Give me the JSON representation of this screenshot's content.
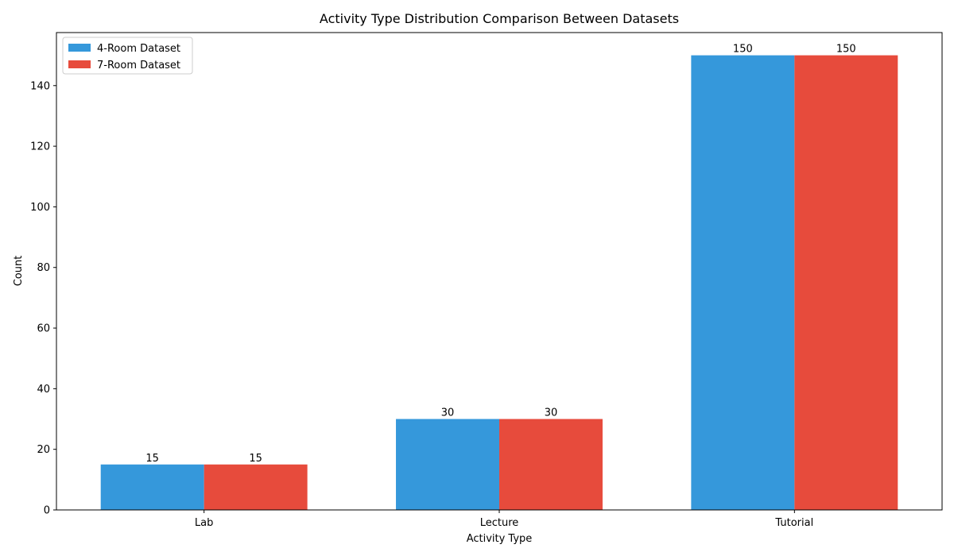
{
  "chart_data": {
    "type": "bar",
    "title": "Activity Type Distribution Comparison Between Datasets",
    "xlabel": "Activity Type",
    "ylabel": "Count",
    "categories": [
      "Lab",
      "Lecture",
      "Tutorial"
    ],
    "series": [
      {
        "name": "4-Room Dataset",
        "values": [
          15,
          30,
          150
        ],
        "color": "#3598db"
      },
      {
        "name": "7-Room Dataset",
        "values": [
          15,
          30,
          150
        ],
        "color": "#e74b3c"
      }
    ],
    "ylim": [
      0,
      157.5
    ],
    "yticks": [
      0,
      20,
      40,
      60,
      80,
      100,
      120,
      140
    ],
    "grid": false,
    "legend_position": "top-left",
    "show_value_labels": true
  }
}
